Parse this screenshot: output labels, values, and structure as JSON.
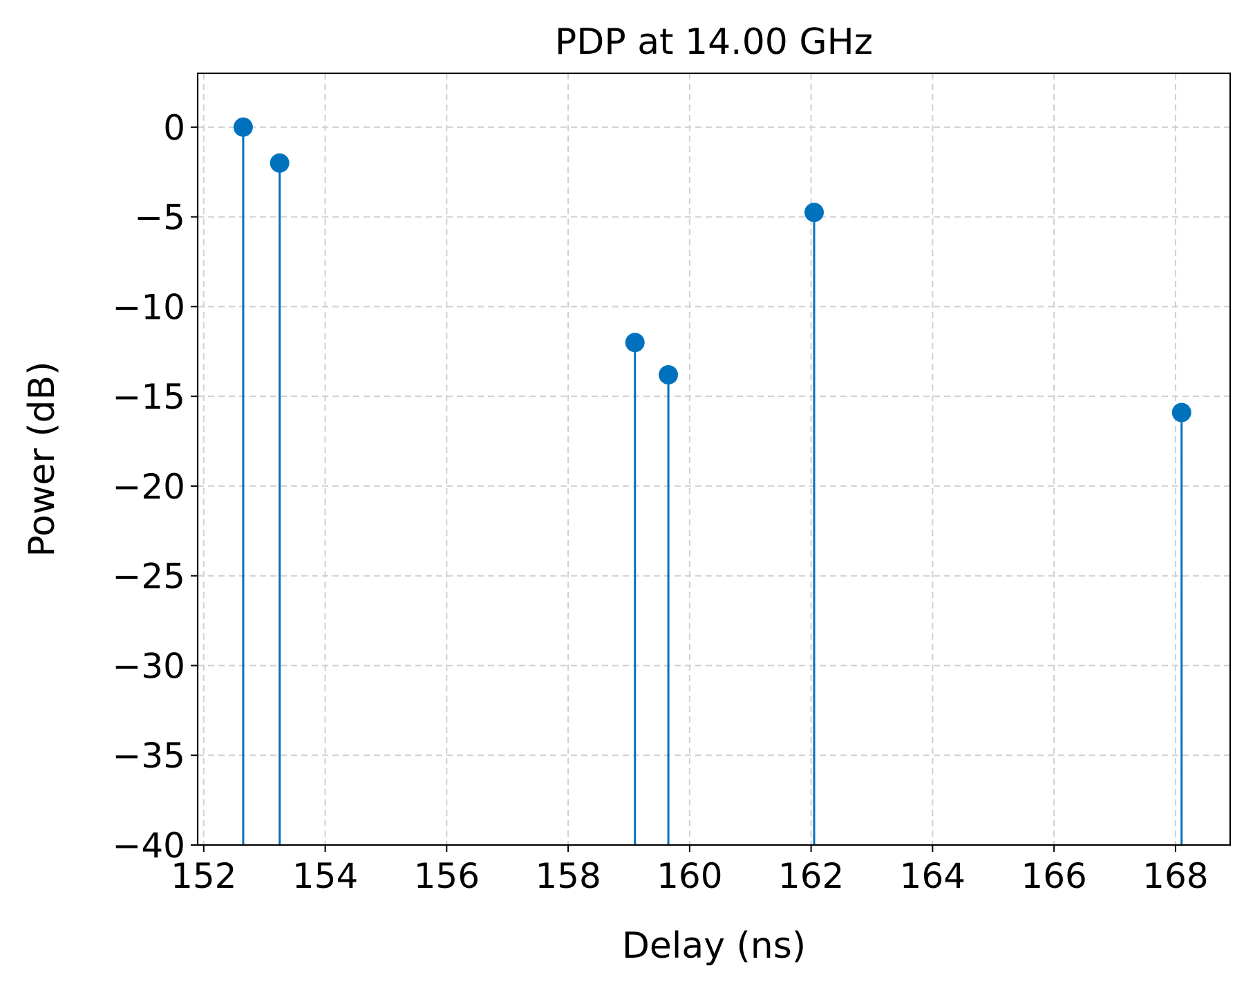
{
  "chart_data": {
    "type": "stem",
    "title": "PDP at 14.00 GHz",
    "xlabel": "Delay (ns)",
    "ylabel": "Power (dB)",
    "xlim": [
      151.9,
      168.9
    ],
    "ylim": [
      -40,
      3
    ],
    "x_ticks": [
      152,
      154,
      156,
      158,
      160,
      162,
      164,
      166,
      168
    ],
    "x_tick_labels": [
      "152",
      "154",
      "156",
      "158",
      "160",
      "162",
      "164",
      "166",
      "168"
    ],
    "y_ticks": [
      0,
      -5,
      -10,
      -15,
      -20,
      -25,
      -30,
      -35,
      -40
    ],
    "y_tick_labels": [
      "0",
      "−5",
      "−10",
      "−15",
      "−20",
      "−25",
      "−30",
      "−35",
      "−40"
    ],
    "grid": true,
    "baseline": -40,
    "series": [
      {
        "color": "#0072bd",
        "x": [
          152.65,
          153.25,
          159.1,
          159.65,
          162.05,
          168.1
        ],
        "y": [
          0.0,
          -2.0,
          -12.0,
          -13.8,
          -4.75,
          -15.9
        ]
      }
    ]
  }
}
